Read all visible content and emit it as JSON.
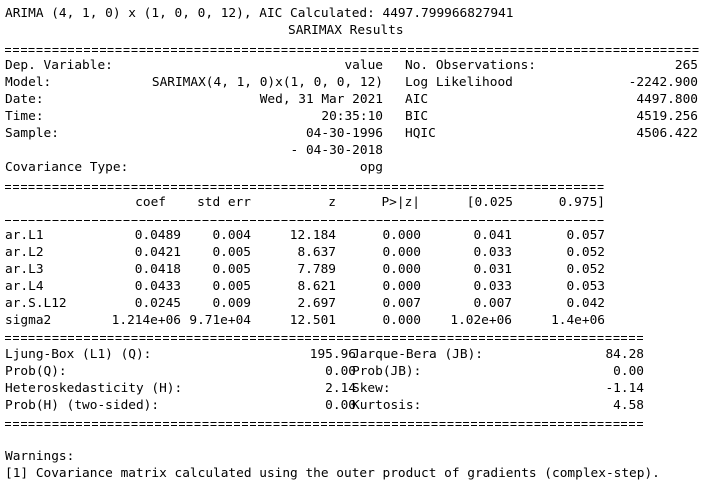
{
  "header": {
    "line": "ARIMA (4, 1, 0) x (1, 0, 0, 12), AIC Calculated: 4497.799966827941",
    "title": "SARIMAX Results"
  },
  "summary": [
    {
      "label": "Dep. Variable:",
      "value": "value",
      "stat": "No. Observations:",
      "stat_value": "265"
    },
    {
      "label": "Model:",
      "value": "SARIMAX(4, 1, 0)x(1, 0, 0, 12)",
      "stat": "Log Likelihood",
      "stat_value": "-2242.900"
    },
    {
      "label": "Date:",
      "value": "Wed, 31 Mar 2021",
      "stat": "AIC",
      "stat_value": "4497.800"
    },
    {
      "label": "Time:",
      "value": "20:35:10",
      "stat": "BIC",
      "stat_value": "4519.256"
    },
    {
      "label": "Sample:",
      "value": "04-30-1996",
      "stat": "HQIC",
      "stat_value": "4506.422"
    },
    {
      "value": "- 04-30-2018"
    },
    {
      "label": "Covariance Type:",
      "value": "opg"
    }
  ],
  "coef_table": {
    "columns": [
      "coef",
      "std err",
      "z",
      "P>|z|",
      "[0.025",
      "0.975]"
    ],
    "rows": [
      {
        "name": "ar.L1",
        "values": [
          "0.0489",
          "0.004",
          "12.184",
          "0.000",
          "0.041",
          "0.057"
        ]
      },
      {
        "name": "ar.L2",
        "values": [
          "0.0421",
          "0.005",
          "8.637",
          "0.000",
          "0.033",
          "0.052"
        ]
      },
      {
        "name": "ar.L3",
        "values": [
          "0.0418",
          "0.005",
          "7.789",
          "0.000",
          "0.031",
          "0.052"
        ]
      },
      {
        "name": "ar.L4",
        "values": [
          "0.0433",
          "0.005",
          "8.621",
          "0.000",
          "0.033",
          "0.053"
        ]
      },
      {
        "name": "ar.S.L12",
        "values": [
          "0.0245",
          "0.009",
          "2.697",
          "0.007",
          "0.007",
          "0.042"
        ]
      },
      {
        "name": "sigma2",
        "values": [
          "1.214e+06",
          "9.71e+04",
          "12.501",
          "0.000",
          "1.02e+06",
          "1.4e+06"
        ]
      }
    ]
  },
  "diagnostics": [
    [
      "Ljung-Box (L1) (Q):",
      "195.96",
      "Jarque-Bera (JB):",
      "84.28"
    ],
    [
      "Prob(Q):",
      "0.00",
      "Prob(JB):",
      "0.00"
    ],
    [
      "Heteroskedasticity (H):",
      "2.14",
      "Skew:",
      "-1.14"
    ],
    [
      "Prob(H) (two-sided):",
      "0.00",
      "Kurtosis:",
      "4.58"
    ]
  ],
  "warnings": {
    "title": "Warnings:",
    "items": [
      "[1] Covariance matrix calculated using the outer product of gradients (complex-step)."
    ]
  }
}
